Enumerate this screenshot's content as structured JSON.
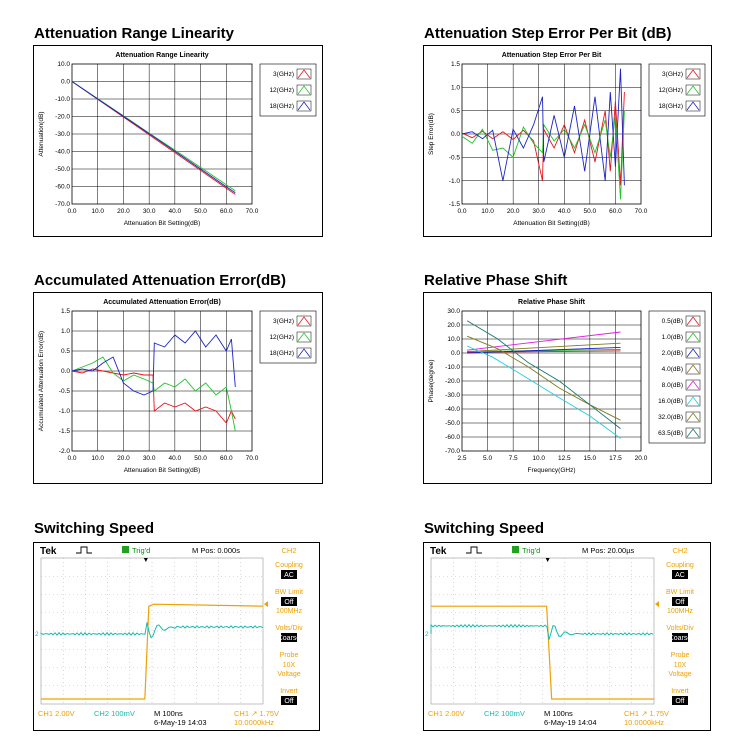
{
  "panels": {
    "p1": {
      "heading": "Attenuation Range Linearity"
    },
    "p2": {
      "heading": "Attenuation Step Error Per Bit (dB)"
    },
    "p3": {
      "heading": "Accumulated Attenuation Error(dB)"
    },
    "p4": {
      "heading": "Relative Phase Shift"
    },
    "p5": {
      "heading": "Switching Speed"
    },
    "p6": {
      "heading": "Switching Speed"
    }
  },
  "colors": {
    "red": "#e8141b",
    "green": "#22c22a",
    "blue": "#1a22c8",
    "magenta": "#e01ee0",
    "cyan": "#22cfe0",
    "olive": "#807a18",
    "teal": "#127a72",
    "scope_yellow": "#f0a000",
    "scope_cyan": "#18b8b0"
  },
  "chart_data": [
    {
      "id": "c1",
      "type": "line",
      "title": "Attenuation Range Linearity",
      "xlabel": "Attenuation Bit Setting(dB)",
      "ylabel": "Attenuation(dB)",
      "xlim": [
        0,
        70
      ],
      "ylim": [
        -70,
        10
      ],
      "xticks": [
        "0.0",
        "10.0",
        "20.0",
        "30.0",
        "40.0",
        "50.0",
        "60.0",
        "70.0"
      ],
      "yticks": [
        "10.0",
        "0.0",
        "-10.0",
        "-20.0",
        "-30.0",
        "-40.0",
        "-50.0",
        "-60.0",
        "-70.0"
      ],
      "legend": "right",
      "series": [
        {
          "name": "3(GHz)",
          "color": "red",
          "x": [
            0,
            10,
            20,
            30,
            40,
            50,
            60,
            63.5
          ],
          "y": [
            0,
            -10.1,
            -20.3,
            -30.4,
            -40.6,
            -50.8,
            -61.0,
            -64.5
          ]
        },
        {
          "name": "12(GHz)",
          "color": "green",
          "x": [
            0,
            10,
            20,
            30,
            40,
            50,
            60,
            63.5
          ],
          "y": [
            0,
            -9.8,
            -19.6,
            -29.5,
            -39.2,
            -49.1,
            -59.0,
            -62.4
          ]
        },
        {
          "name": "18(GHz)",
          "color": "blue",
          "x": [
            0,
            10,
            20,
            30,
            40,
            50,
            60,
            63.5
          ],
          "y": [
            0,
            -10.0,
            -19.9,
            -29.8,
            -39.9,
            -50.0,
            -60.2,
            -63.6
          ]
        }
      ]
    },
    {
      "id": "c2",
      "type": "line",
      "title": "Attenuation Step Error Per Bit",
      "xlabel": "Attenuation Bit Setting(dB)",
      "ylabel": "Step Error(dB)",
      "xlim": [
        0,
        70
      ],
      "ylim": [
        -1.5,
        1.5
      ],
      "xticks": [
        "0.0",
        "10.0",
        "20.0",
        "30.0",
        "40.0",
        "50.0",
        "60.0",
        "70.0"
      ],
      "yticks": [
        "1.5",
        "1.0",
        "0.5",
        "0.0",
        "-0.5",
        "-1.0",
        "-1.5"
      ],
      "legend": "right",
      "series": [
        {
          "name": "3(GHz)",
          "color": "red",
          "x": [
            0,
            4,
            8,
            12,
            16,
            20,
            24,
            28,
            31.5,
            32,
            36,
            40,
            44,
            48,
            52,
            56,
            58,
            60,
            62,
            63.5
          ],
          "y": [
            0.02,
            -0.08,
            0.06,
            -0.1,
            0.05,
            -0.12,
            0.08,
            -0.15,
            -1.0,
            0.1,
            -0.3,
            0.2,
            -0.4,
            0.3,
            -0.6,
            0.5,
            -0.8,
            0.7,
            -1.1,
            0.9
          ]
        },
        {
          "name": "12(GHz)",
          "color": "green",
          "x": [
            0,
            4,
            8,
            12,
            16,
            20,
            24,
            28,
            31.5,
            32,
            36,
            40,
            44,
            48,
            52,
            56,
            58,
            60,
            62,
            63.5
          ],
          "y": [
            -0.05,
            -0.2,
            0.1,
            -0.35,
            -0.3,
            -0.5,
            0.15,
            -0.2,
            -0.4,
            0.2,
            -0.15,
            0.1,
            -0.3,
            0.2,
            -0.4,
            0.3,
            -0.5,
            0.4,
            -1.4,
            0.5
          ]
        },
        {
          "name": "18(GHz)",
          "color": "blue",
          "x": [
            0,
            4,
            8,
            12,
            16,
            20,
            24,
            28,
            31.5,
            32,
            36,
            40,
            44,
            48,
            52,
            56,
            58,
            60,
            62,
            63.5
          ],
          "y": [
            0.0,
            0.05,
            -0.1,
            0.08,
            -1.0,
            0.1,
            -0.3,
            0.2,
            0.8,
            -0.6,
            0.4,
            -0.5,
            0.6,
            -0.8,
            0.8,
            -1.0,
            0.9,
            -0.7,
            1.4,
            -1.1
          ]
        }
      ]
    },
    {
      "id": "c3",
      "type": "line",
      "title": "Accumulated Attenuation Error(dB)",
      "xlabel": "Attenuation Bit Setting(dB)",
      "ylabel": "Accumulated Attenuation Error(dB)",
      "xlim": [
        0,
        70
      ],
      "ylim": [
        -2.0,
        1.5
      ],
      "xticks": [
        "0.0",
        "10.0",
        "20.0",
        "30.0",
        "40.0",
        "50.0",
        "60.0",
        "70.0"
      ],
      "yticks": [
        "1.5",
        "1.0",
        "0.5",
        "0.0",
        "-0.5",
        "-1.0",
        "-1.5",
        "-2.0"
      ],
      "legend": "right",
      "series": [
        {
          "name": "3(GHz)",
          "color": "red",
          "x": [
            0,
            4,
            8,
            12,
            16,
            20,
            24,
            28,
            31.5,
            32,
            36,
            40,
            44,
            48,
            52,
            56,
            60,
            62,
            63.5
          ],
          "y": [
            0,
            -0.05,
            0.05,
            0.0,
            -0.05,
            -0.1,
            -0.05,
            -0.1,
            -0.1,
            -1.0,
            -0.8,
            -0.9,
            -0.8,
            -1.0,
            -0.9,
            -1.0,
            -1.3,
            -1.0,
            -1.2
          ]
        },
        {
          "name": "12(GHz)",
          "color": "green",
          "x": [
            0,
            4,
            8,
            12,
            16,
            20,
            24,
            28,
            31.5,
            32,
            36,
            40,
            44,
            48,
            52,
            56,
            60,
            62,
            63.5
          ],
          "y": [
            0,
            0.1,
            0.2,
            0.35,
            -0.05,
            -0.25,
            -0.1,
            -0.2,
            -0.3,
            -0.5,
            -0.3,
            -0.4,
            -0.2,
            -0.5,
            -0.3,
            -0.6,
            -0.4,
            -1.0,
            -1.5
          ]
        },
        {
          "name": "18(GHz)",
          "color": "blue",
          "x": [
            0,
            4,
            8,
            12,
            16,
            20,
            24,
            28,
            31.5,
            32,
            36,
            40,
            44,
            48,
            52,
            56,
            60,
            62,
            63.5
          ],
          "y": [
            0,
            0.05,
            0.0,
            0.2,
            0.35,
            -0.3,
            -0.5,
            -0.6,
            -0.5,
            0.7,
            0.6,
            0.9,
            0.7,
            1.0,
            0.6,
            0.9,
            0.5,
            0.8,
            -0.4
          ]
        }
      ]
    },
    {
      "id": "c4",
      "type": "line",
      "title": "Relative Phase Shift",
      "xlabel": "Frequency(GHz)",
      "ylabel": "Phase(degree)",
      "xlim": [
        2.5,
        20
      ],
      "ylim": [
        -70,
        30
      ],
      "xticks": [
        "2.5",
        "5.0",
        "7.5",
        "10.0",
        "12.5",
        "15.0",
        "17.5",
        "20.0"
      ],
      "yticks": [
        "30.0",
        "20.0",
        "10.0",
        "0.0",
        "-10.0",
        "-20.0",
        "-30.0",
        "-40.0",
        "-50.0",
        "-60.0",
        "-70.0"
      ],
      "legend": "right",
      "series": [
        {
          "name": "0.5(dB)",
          "color": "red",
          "x": [
            3,
            18
          ],
          "y": [
            0.5,
            1.5
          ]
        },
        {
          "name": "1.0(dB)",
          "color": "green",
          "x": [
            3,
            18
          ],
          "y": [
            1,
            2.5
          ]
        },
        {
          "name": "2.0(dB)",
          "color": "blue",
          "x": [
            3,
            18
          ],
          "y": [
            0,
            4
          ]
        },
        {
          "name": "4.0(dB)",
          "color": "olive",
          "x": [
            3,
            18
          ],
          "y": [
            1,
            7
          ]
        },
        {
          "name": "8.0(dB)",
          "color": "magenta",
          "x": [
            3,
            18
          ],
          "y": [
            2,
            15
          ]
        },
        {
          "name": "16.0(dB)",
          "color": "cyan",
          "x": [
            3,
            5.5,
            8,
            12,
            15,
            18
          ],
          "y": [
            5,
            -3,
            -14,
            -32,
            -45,
            -61
          ]
        },
        {
          "name": "32.0(dB)",
          "color": "olive",
          "x": [
            3,
            6,
            9,
            12,
            15,
            18
          ],
          "y": [
            12,
            3,
            -10,
            -25,
            -37,
            -48
          ]
        },
        {
          "name": "63.5(dB)",
          "color": "teal",
          "x": [
            3,
            6,
            9,
            12,
            15,
            18
          ],
          "y": [
            23,
            10,
            -7,
            -20,
            -37,
            -54
          ]
        }
      ]
    }
  ],
  "scopes": [
    {
      "id": "s1",
      "brand": "Tek",
      "trig": "Trig'd",
      "mpos": "M Pos: 0.000s",
      "ch": "CH2",
      "menu": [
        {
          "t": "Coupling",
          "v": "AC"
        },
        {
          "t": "BW Limit",
          "v": "Off",
          "s": "100MHz"
        },
        {
          "t": "Volts/Div",
          "v": "Coarse"
        },
        {
          "t": "Probe",
          "s": "10X",
          "s2": "Voltage"
        },
        {
          "t": "Invert",
          "v": "Off"
        }
      ],
      "ch1": "CH1  2.00V",
      "ch2": "CH2  100mV",
      "mtime": "M 100ns",
      "date": "6-May-19 14:03",
      "ch1trig": "CH1 ↗ 1.75V",
      "freq": "10.0000kHz",
      "edge": 0.22
    },
    {
      "id": "s2",
      "brand": "Tek",
      "trig": "Trig'd",
      "mpos": "M Pos: 20.00µs",
      "ch": "CH2",
      "menu": [
        {
          "t": "Coupling",
          "v": "AC"
        },
        {
          "t": "BW Limit",
          "v": "Off",
          "s": "100MHz"
        },
        {
          "t": "Volts/Div",
          "v": "Coarse"
        },
        {
          "t": "Probe",
          "s": "10X",
          "s2": "Voltage"
        },
        {
          "t": "Invert",
          "v": "Off"
        }
      ],
      "ch1": "CH1  2.00V",
      "ch2": "CH2  100mV",
      "mtime": "M 100ns",
      "date": "6-May-19 14:04",
      "ch1trig": "CH1 ↗ 1.75V",
      "freq": "10.0000kHz",
      "edge": 0.55
    }
  ]
}
